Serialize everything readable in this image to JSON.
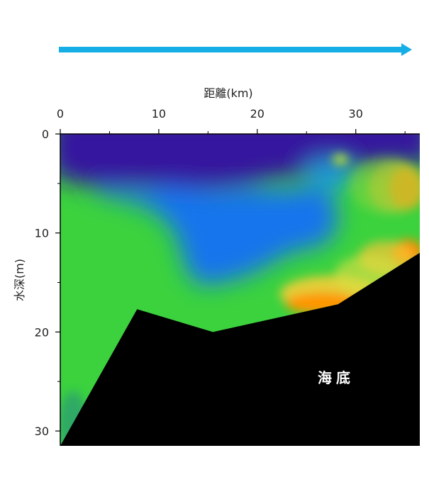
{
  "chart_data": {
    "type": "heatmap",
    "title": "",
    "xlabel": "距離(km)",
    "ylabel": "水深(m)",
    "xlim": [
      0,
      36.5
    ],
    "ylim": [
      0,
      31.5
    ],
    "x_ticks": [
      0,
      10,
      20,
      30
    ],
    "y_ticks": [
      0,
      10,
      20,
      30
    ],
    "x_minor_ticks": [
      5,
      15,
      25,
      35
    ],
    "y_minor_ticks": [
      5,
      15,
      25
    ],
    "y_axis_inverted": true,
    "x_axis_position": "top",
    "direction_arrow": "left-to-right",
    "seabed_label": "海底",
    "seabed_profile": [
      {
        "x": 0,
        "y": 31.5
      },
      {
        "x": 7.8,
        "y": 17.7
      },
      {
        "x": 15.5,
        "y": 20.0
      },
      {
        "x": 28.2,
        "y": 17.2
      },
      {
        "x": 36.5,
        "y": 12.0
      }
    ],
    "colors": {
      "arrow": "#16aee6",
      "seabed": "#000000",
      "surface_layer": "#3a18a8",
      "mid_layer": "#1870e8",
      "lower_layer": "#38d23c",
      "warm_patch": "#ff7a00"
    }
  }
}
